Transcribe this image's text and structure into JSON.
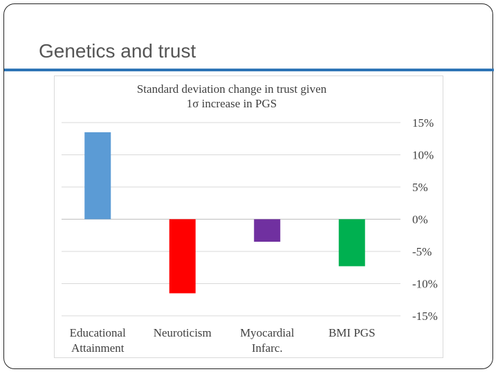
{
  "slide": {
    "title": "Genetics and trust",
    "accent_color": "#2E75B6"
  },
  "chart_data": {
    "type": "bar",
    "title_lines": [
      "Standard deviation change in trust given",
      "1σ increase in PGS"
    ],
    "categories": [
      [
        "Educational",
        "Attainment"
      ],
      [
        "Neuroticism"
      ],
      [
        "Myocardial",
        "Infarc."
      ],
      [
        "BMI PGS"
      ]
    ],
    "values": [
      13.5,
      -11.5,
      -3.5,
      -7.3
    ],
    "colors": [
      "#5B9BD5",
      "#FF0000",
      "#7030A0",
      "#00B050"
    ],
    "ylim": [
      -15,
      15
    ],
    "yticks": [
      15,
      10,
      5,
      0,
      -5,
      -10,
      -15
    ],
    "ytick_labels": [
      "15%",
      "10%",
      "5%",
      "0%",
      "-5%",
      "-10%",
      "-15%"
    ],
    "y_axis_side": "right",
    "grid": true,
    "legend": "none",
    "xlabel": "",
    "ylabel": ""
  }
}
